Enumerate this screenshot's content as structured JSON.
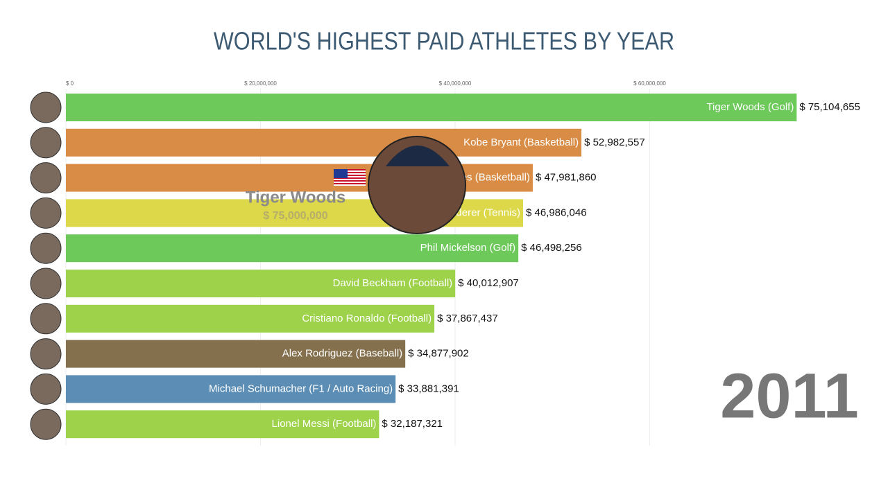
{
  "chart_data": {
    "type": "bar",
    "orientation": "horizontal",
    "title": "WORLD'S HIGHEST PAID ATHLETES BY YEAR",
    "categories": [
      "Tiger Woods (Golf)",
      "Kobe Bryant (Basketball)",
      "LeBron James (Basketball)",
      "Roger Federer (Tennis)",
      "Phil Mickelson (Golf)",
      "David Beckham (Football)",
      "Cristiano Ronaldo (Football)",
      "Alex Rodriguez (Baseball)",
      "Michael Schumacher (F1 / Auto Racing)",
      "Lionel Messi (Football)"
    ],
    "values": [
      75104655,
      52982557,
      47981860,
      46986046,
      46498256,
      40012907,
      37867437,
      34877902,
      33881391,
      32187321
    ],
    "value_labels": [
      "$ 75,104,655",
      "$ 52,982,557",
      "$ 47,981,860",
      "$ 46,986,046",
      "$ 46,498,256",
      "$ 40,012,907",
      "$ 37,867,437",
      "$ 34,877,902",
      "$ 33,881,391",
      "$ 32,187,321"
    ],
    "colors": [
      "#6cc95a",
      "#d98c45",
      "#d98c45",
      "#dcd84a",
      "#6cc95a",
      "#9dd24a",
      "#9dd24a",
      "#85704e",
      "#5b8db5",
      "#9dd24a"
    ],
    "xlim": [
      0,
      80000000
    ],
    "xticks": [
      {
        "value": 0,
        "label": "$ 0"
      },
      {
        "value": 20000000,
        "label": "$ 20,000,000"
      },
      {
        "value": 40000000,
        "label": "$ 40,000,000"
      },
      {
        "value": 60000000,
        "label": "$ 60,000,000"
      }
    ],
    "grid": true,
    "year": "2011",
    "highlight_name": "Tiger Woods",
    "highlight_value": "$ 75,000,000"
  }
}
